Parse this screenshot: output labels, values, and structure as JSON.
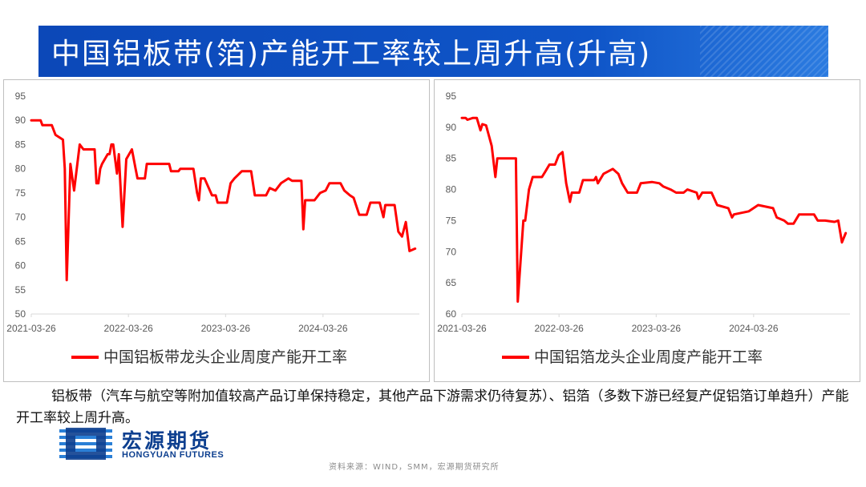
{
  "title": "中国铝板带(箔)产能开工率较上周升高(升高)",
  "note": "铝板带（汽车与航空等附加值较高产品订单保持稳定，其他产品下游需求仍待复苏）、铝箔（多数下游已经复产促铝箔订单趋升）产能开工率较上周升高。",
  "logo": {
    "cn": "宏源期货",
    "en": "HONGYUAN FUTURES"
  },
  "source": "资料来源：WIND，SMM，宏源期货研究所",
  "colors": {
    "series": "#ff0000",
    "title_bg": "#0f55c8",
    "logo": "#0d3f8f"
  },
  "chart_data": [
    {
      "type": "line",
      "title": "",
      "xlabel": "",
      "ylabel": "",
      "x_ticks": [
        "2021-03-26",
        "2022-03-26",
        "2023-03-26",
        "2024-03-26"
      ],
      "y_ticks": [
        50,
        55,
        60,
        65,
        70,
        75,
        80,
        85,
        90,
        95
      ],
      "ylim": [
        50,
        95
      ],
      "xlim": [
        "2021-03-26",
        "2025-03-23"
      ],
      "grid": false,
      "legend_position": "bottom",
      "series": [
        {
          "name": "中国铝板带龙头企业周度产能开工率",
          "color": "#ff0000",
          "points": [
            [
              "2021-03-26",
              90
            ],
            [
              "2021-04-30",
              90
            ],
            [
              "2021-05-07",
              89
            ],
            [
              "2021-06-11",
              89
            ],
            [
              "2021-06-25",
              87
            ],
            [
              "2021-07-23",
              86
            ],
            [
              "2021-07-30",
              80
            ],
            [
              "2021-08-06",
              57
            ],
            [
              "2021-08-20",
              81
            ],
            [
              "2021-09-03",
              75.5
            ],
            [
              "2021-09-24",
              85
            ],
            [
              "2021-10-08",
              84
            ],
            [
              "2021-11-19",
              84
            ],
            [
              "2021-11-26",
              77
            ],
            [
              "2021-12-03",
              77
            ],
            [
              "2021-12-10",
              80
            ],
            [
              "2021-12-17",
              81
            ],
            [
              "2022-01-07",
              83
            ],
            [
              "2022-01-14",
              83
            ],
            [
              "2022-01-21",
              85
            ],
            [
              "2022-01-28",
              85
            ],
            [
              "2022-02-11",
              79
            ],
            [
              "2022-02-18",
              83
            ],
            [
              "2022-03-04",
              68
            ],
            [
              "2022-03-18",
              82
            ],
            [
              "2022-04-08",
              84
            ],
            [
              "2022-04-22",
              80
            ],
            [
              "2022-04-29",
              78
            ],
            [
              "2022-05-27",
              78
            ],
            [
              "2022-06-03",
              81
            ],
            [
              "2022-08-26",
              81
            ],
            [
              "2022-09-02",
              79.5
            ],
            [
              "2022-09-30",
              79.5
            ],
            [
              "2022-10-07",
              80
            ],
            [
              "2022-11-25",
              80
            ],
            [
              "2022-12-09",
              75
            ],
            [
              "2022-12-16",
              73.5
            ],
            [
              "2022-12-23",
              78
            ],
            [
              "2023-01-06",
              78
            ],
            [
              "2023-02-03",
              74.5
            ],
            [
              "2023-02-17",
              74.5
            ],
            [
              "2023-02-24",
              73
            ],
            [
              "2023-03-31",
              73
            ],
            [
              "2023-04-14",
              77
            ],
            [
              "2023-04-28",
              78
            ],
            [
              "2023-05-26",
              79.5
            ],
            [
              "2023-06-30",
              79.5
            ],
            [
              "2023-07-14",
              74.5
            ],
            [
              "2023-08-25",
              74.5
            ],
            [
              "2023-09-08",
              76
            ],
            [
              "2023-09-29",
              75.5
            ],
            [
              "2023-10-20",
              77
            ],
            [
              "2023-11-17",
              78
            ],
            [
              "2023-12-01",
              77.5
            ],
            [
              "2024-01-05",
              77.5
            ],
            [
              "2024-01-12",
              67.5
            ],
            [
              "2024-01-19",
              73.5
            ],
            [
              "2024-02-23",
              73.5
            ],
            [
              "2024-03-15",
              75
            ],
            [
              "2024-04-05",
              75.5
            ],
            [
              "2024-04-19",
              77
            ],
            [
              "2024-05-31",
              77
            ],
            [
              "2024-06-14",
              75.5
            ],
            [
              "2024-07-05",
              74.5
            ],
            [
              "2024-07-19",
              74
            ],
            [
              "2024-08-09",
              70.5
            ],
            [
              "2024-09-06",
              70.5
            ],
            [
              "2024-09-20",
              73
            ],
            [
              "2024-10-25",
              73
            ],
            [
              "2024-11-08",
              70
            ],
            [
              "2024-11-15",
              72.5
            ],
            [
              "2024-12-20",
              72.5
            ],
            [
              "2025-01-03",
              67
            ],
            [
              "2025-01-17",
              66
            ],
            [
              "2025-01-31",
              69
            ],
            [
              "2025-02-14",
              63
            ],
            [
              "2025-03-07",
              63.5
            ]
          ]
        }
      ]
    },
    {
      "type": "line",
      "title": "",
      "xlabel": "",
      "ylabel": "",
      "x_ticks": [
        "2021-03-26",
        "2022-03-26",
        "2023-03-26",
        "2024-03-26"
      ],
      "y_ticks": [
        60,
        65,
        70,
        75,
        80,
        85,
        90,
        95
      ],
      "ylim": [
        60,
        95
      ],
      "xlim": [
        "2021-03-26",
        "2025-03-23"
      ],
      "grid": false,
      "legend_position": "bottom",
      "series": [
        {
          "name": "中国铝箔龙头企业周度产能开工率",
          "color": "#ff0000",
          "points": [
            [
              "2021-03-26",
              91.5
            ],
            [
              "2021-04-09",
              91.5
            ],
            [
              "2021-04-16",
              91.2
            ],
            [
              "2021-05-07",
              91.5
            ],
            [
              "2021-05-21",
              91.5
            ],
            [
              "2021-06-04",
              89.5
            ],
            [
              "2021-06-11",
              90.5
            ],
            [
              "2021-06-25",
              90.3
            ],
            [
              "2021-07-16",
              87
            ],
            [
              "2021-07-30",
              82
            ],
            [
              "2021-08-06",
              85
            ],
            [
              "2021-10-15",
              85
            ],
            [
              "2021-10-22",
              62
            ],
            [
              "2021-11-12",
              75
            ],
            [
              "2021-11-19",
              75
            ],
            [
              "2021-12-03",
              80
            ],
            [
              "2021-12-17",
              82
            ],
            [
              "2022-01-21",
              82
            ],
            [
              "2022-02-04",
              83
            ],
            [
              "2022-02-18",
              84
            ],
            [
              "2022-03-11",
              84
            ],
            [
              "2022-03-25",
              85.5
            ],
            [
              "2022-04-08",
              86
            ],
            [
              "2022-04-22",
              81
            ],
            [
              "2022-05-06",
              78
            ],
            [
              "2022-05-13",
              79.5
            ],
            [
              "2022-06-10",
              79.5
            ],
            [
              "2022-06-24",
              81.5
            ],
            [
              "2022-08-05",
              81.5
            ],
            [
              "2022-08-12",
              82
            ],
            [
              "2022-08-19",
              81
            ],
            [
              "2022-09-09",
              82.5
            ],
            [
              "2022-10-14",
              83.3
            ],
            [
              "2022-11-04",
              82.5
            ],
            [
              "2022-11-18",
              81
            ],
            [
              "2022-12-09",
              79.5
            ],
            [
              "2023-01-13",
              79.5
            ],
            [
              "2023-01-27",
              81
            ],
            [
              "2023-03-10",
              81.2
            ],
            [
              "2023-04-07",
              81
            ],
            [
              "2023-04-21",
              80.5
            ],
            [
              "2023-05-19",
              80
            ],
            [
              "2023-06-09",
              79.5
            ],
            [
              "2023-07-07",
              79.5
            ],
            [
              "2023-07-21",
              80
            ],
            [
              "2023-08-25",
              79.5
            ],
            [
              "2023-09-01",
              78.5
            ],
            [
              "2023-09-15",
              79.5
            ],
            [
              "2023-10-20",
              79.5
            ],
            [
              "2023-11-10",
              77.5
            ],
            [
              "2023-12-22",
              77
            ],
            [
              "2024-01-05",
              75.5
            ],
            [
              "2024-01-12",
              76
            ],
            [
              "2024-03-08",
              76.5
            ],
            [
              "2024-04-12",
              77.5
            ],
            [
              "2024-06-07",
              77
            ],
            [
              "2024-06-21",
              75.5
            ],
            [
              "2024-07-19",
              75
            ],
            [
              "2024-08-02",
              74.5
            ],
            [
              "2024-08-23",
              74.5
            ],
            [
              "2024-09-13",
              76
            ],
            [
              "2024-11-08",
              76
            ],
            [
              "2024-11-22",
              75
            ],
            [
              "2024-12-20",
              75
            ],
            [
              "2025-01-24",
              74.8
            ],
            [
              "2025-02-07",
              75
            ],
            [
              "2025-02-21",
              71.5
            ],
            [
              "2025-03-07",
              73
            ]
          ]
        }
      ]
    }
  ]
}
